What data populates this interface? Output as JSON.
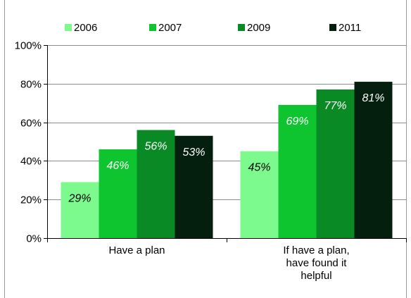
{
  "chart_data": {
    "type": "bar",
    "categories": [
      [
        "Have a plan"
      ],
      [
        "If have a plan,",
        "have found it",
        "helpful"
      ]
    ],
    "series": [
      {
        "name": "2006",
        "color": "#7dfa8d",
        "values": [
          29,
          45
        ],
        "labels": [
          "29%",
          "45%"
        ],
        "label_color": "#000000"
      },
      {
        "name": "2007",
        "color": "#0ec530",
        "values": [
          46,
          69
        ],
        "labels": [
          "46%",
          "69%"
        ],
        "label_color": "#ffffff"
      },
      {
        "name": "2009",
        "color": "#0a8a24",
        "values": [
          56,
          77
        ],
        "labels": [
          "56%",
          "77%"
        ],
        "label_color": "#ffffff"
      },
      {
        "name": "2011",
        "color": "#041f0d",
        "values": [
          53,
          81
        ],
        "labels": [
          "53%",
          "81%"
        ],
        "label_color": "#ffffff"
      }
    ],
    "y_ticks": [
      "0%",
      "20%",
      "40%",
      "60%",
      "80%",
      "100%"
    ],
    "ylim": [
      0,
      100
    ],
    "legend_position": "top",
    "grid": true,
    "title": "",
    "xlabel": "",
    "ylabel": ""
  }
}
